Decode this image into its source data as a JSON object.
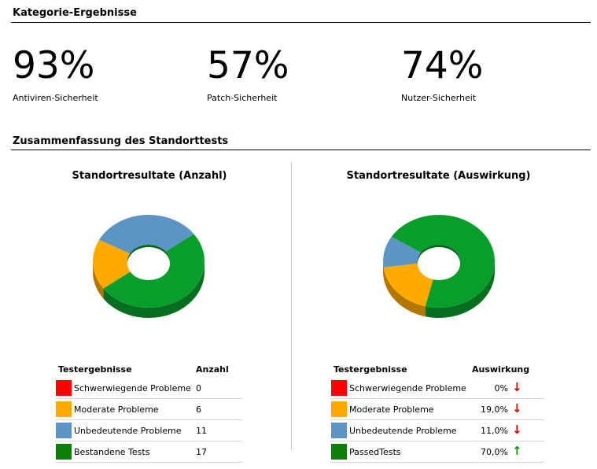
{
  "category_section": {
    "title": "Kategorie-Ergebnisse",
    "metrics": [
      {
        "value": "93%",
        "label": "Antiviren-Sicherheit"
      },
      {
        "value": "57%",
        "label": "Patch-Sicherheit"
      },
      {
        "value": "74%",
        "label": "Nutzer-Sicherheit"
      }
    ]
  },
  "summary_section": {
    "title": "Zusammenfassung des Standorttests"
  },
  "colors": {
    "severe": "#ff0000",
    "moderate": "#ffaa00",
    "minor": "#5b94c5",
    "passed": "#079e2c",
    "passed_swatch": "#0a7e07",
    "arrow_down": "#d40000",
    "arrow_up": "#1c8a1c"
  },
  "count_panel": {
    "title": "Standortresultate (Anzahl)",
    "col_results": "Testergebnisse",
    "col_value": "Anzahl",
    "rows": [
      {
        "label": "Schwerwiegende Probleme",
        "value": "0"
      },
      {
        "label": "Moderate Probleme",
        "value": "6"
      },
      {
        "label": "Unbedeutende Probleme",
        "value": "11"
      },
      {
        "label": "Bestandene Tests",
        "value": "17"
      }
    ]
  },
  "impact_panel": {
    "title": "Standortresultate (Auswirkung)",
    "col_results": "Testergebnisse",
    "col_value": "Auswirkung",
    "rows": [
      {
        "label": "Schwerwiegende Probleme",
        "value": "0%",
        "trend": "down",
        "trend_icon": "↓"
      },
      {
        "label": "Moderate Probleme",
        "value": "19,0%",
        "trend": "down",
        "trend_icon": "↓"
      },
      {
        "label": "Unbedeutende Probleme",
        "value": "11,0%",
        "trend": "down",
        "trend_icon": "↓"
      },
      {
        "label": "PassedTests",
        "value": "70,0%",
        "trend": "up",
        "trend_icon": "↑"
      }
    ]
  },
  "chart_data": [
    {
      "type": "pie",
      "title": "Standortresultate (Anzahl)",
      "categories": [
        "Schwerwiegende Probleme",
        "Moderate Probleme",
        "Unbedeutende Probleme",
        "Bestandene Tests"
      ],
      "values": [
        0,
        6,
        11,
        17
      ]
    },
    {
      "type": "pie",
      "title": "Standortresultate (Auswirkung)",
      "categories": [
        "Schwerwiegende Probleme",
        "Moderate Probleme",
        "Unbedeutende Probleme",
        "PassedTests"
      ],
      "values": [
        0,
        19.0,
        11.0,
        70.0
      ]
    }
  ]
}
